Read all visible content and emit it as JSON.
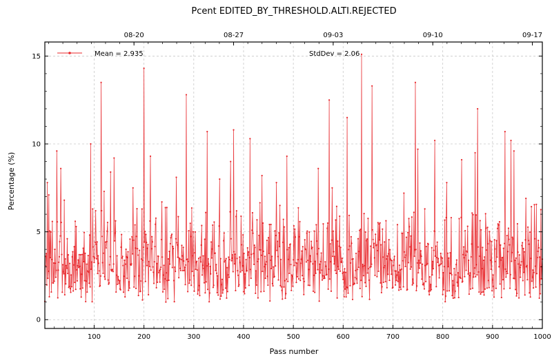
{
  "chart_data": {
    "type": "line",
    "title": "Pcent EDITED_BY_THRESHOLD.ALTI.REJECTED",
    "xlabel": "Pass number",
    "ylabel": "Percentage (%)",
    "xlim": [
      1,
      1000
    ],
    "ylim": [
      -0.5,
      15.8
    ],
    "x_ticks": [
      100,
      200,
      300,
      400,
      500,
      600,
      700,
      800,
      900,
      1000
    ],
    "y_ticks": [
      0,
      5,
      10,
      15
    ],
    "top_axis": {
      "tick_labels": [
        "08-20",
        "08-27",
        "09-03",
        "09-10",
        "09-17"
      ],
      "tick_positions_pass": [
        180,
        380,
        580,
        780,
        980
      ]
    },
    "grid": true,
    "legend": {
      "placement": "top-left",
      "series_label": "Mean = 2.935",
      "annotation": "StdDev = 2.06"
    },
    "series": [
      {
        "name": "Mean = 2.935",
        "color": "#e8262a",
        "n_points": 1000,
        "min": 0.2,
        "max": 15.1,
        "mean": 2.935,
        "stddev": 2.06,
        "peaks": [
          {
            "x": 3,
            "y": 3.6
          },
          {
            "x": 6,
            "y": 7.8
          },
          {
            "x": 9,
            "y": 7.1
          },
          {
            "x": 25,
            "y": 9.6
          },
          {
            "x": 33,
            "y": 8.6
          },
          {
            "x": 40,
            "y": 6.8
          },
          {
            "x": 62,
            "y": 5.6
          },
          {
            "x": 93,
            "y": 10.0
          },
          {
            "x": 97,
            "y": 6.3
          },
          {
            "x": 114,
            "y": 13.5
          },
          {
            "x": 120,
            "y": 7.3
          },
          {
            "x": 133,
            "y": 8.4
          },
          {
            "x": 140,
            "y": 9.2
          },
          {
            "x": 178,
            "y": 7.5
          },
          {
            "x": 200,
            "y": 14.3
          },
          {
            "x": 213,
            "y": 9.3
          },
          {
            "x": 236,
            "y": 6.7
          },
          {
            "x": 265,
            "y": 8.1
          },
          {
            "x": 285,
            "y": 12.8
          },
          {
            "x": 327,
            "y": 10.7
          },
          {
            "x": 352,
            "y": 8.0
          },
          {
            "x": 374,
            "y": 9.0
          },
          {
            "x": 380,
            "y": 10.8
          },
          {
            "x": 413,
            "y": 10.3
          },
          {
            "x": 437,
            "y": 8.2
          },
          {
            "x": 466,
            "y": 7.8
          },
          {
            "x": 487,
            "y": 9.3
          },
          {
            "x": 550,
            "y": 8.6
          },
          {
            "x": 572,
            "y": 12.5
          },
          {
            "x": 578,
            "y": 7.5
          },
          {
            "x": 608,
            "y": 11.5
          },
          {
            "x": 637,
            "y": 15.1
          },
          {
            "x": 658,
            "y": 13.3
          },
          {
            "x": 722,
            "y": 7.2
          },
          {
            "x": 745,
            "y": 13.5
          },
          {
            "x": 750,
            "y": 9.7
          },
          {
            "x": 784,
            "y": 10.2
          },
          {
            "x": 808,
            "y": 7.8
          },
          {
            "x": 838,
            "y": 9.1
          },
          {
            "x": 865,
            "y": 9.5
          },
          {
            "x": 870,
            "y": 12.0
          },
          {
            "x": 925,
            "y": 10.7
          },
          {
            "x": 937,
            "y": 10.2
          },
          {
            "x": 943,
            "y": 9.6
          },
          {
            "x": 967,
            "y": 6.9
          }
        ]
      }
    ]
  }
}
